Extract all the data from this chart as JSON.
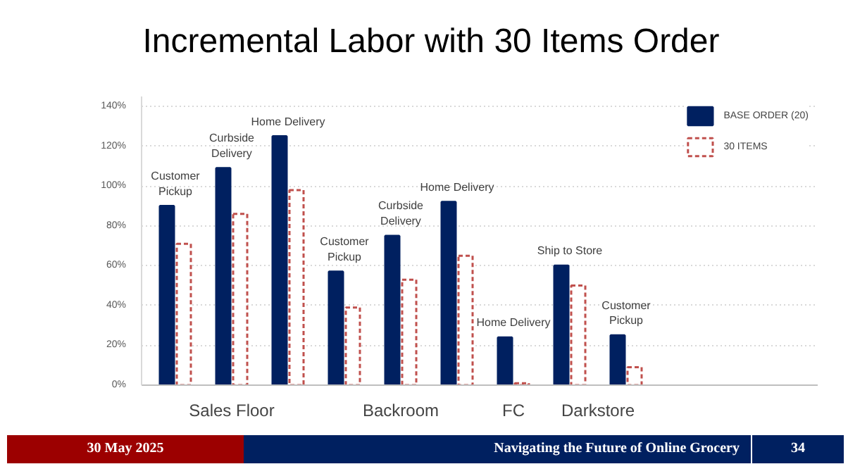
{
  "chart_data": {
    "type": "bar",
    "title": "Incremental Labor with 30 Items Order",
    "categories": [
      "Customer\nPickup",
      "Curbside\nDelivery",
      "Home Delivery",
      "Customer\nPickup",
      "Curbside\nDelivery",
      "Home Delivery",
      "Home Delivery",
      "Ship to Store",
      "Customer\nPickup"
    ],
    "series": [
      {
        "name": "BASE ORDER (20)",
        "color": "#002060",
        "line_style": "solid",
        "values": [
          90,
          109,
          125,
          57,
          75,
          92,
          24,
          60,
          25
        ]
      },
      {
        "name": "30 ITEMS",
        "color": "#c0504d",
        "line_style": "dashed",
        "values": [
          71,
          86,
          98,
          39,
          53,
          65,
          1,
          50,
          9
        ]
      }
    ],
    "ylim": [
      0,
      145
    ],
    "yticks": [
      {
        "value": 0,
        "label": "0%"
      },
      {
        "value": 20,
        "label": "20%"
      },
      {
        "value": 40,
        "label": "40%"
      },
      {
        "value": 60,
        "label": "60%"
      },
      {
        "value": 80,
        "label": "80%"
      },
      {
        "value": 100,
        "label": "100%"
      },
      {
        "value": 120,
        "label": "120%"
      },
      {
        "value": 140,
        "label": "140%"
      }
    ],
    "grid": "y",
    "legend": "right",
    "annotations": [
      "Sales Floor",
      "Backroom",
      "FC",
      "Darkstore",
      "30 May 2025",
      "Navigating the Future of Online Grocery",
      "34"
    ]
  }
}
